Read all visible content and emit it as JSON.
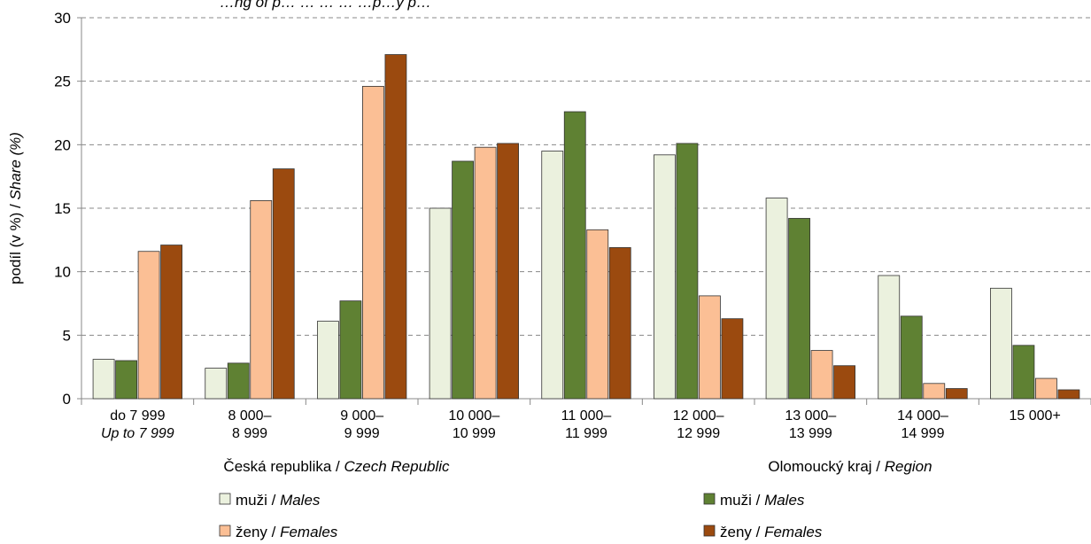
{
  "chart_data": {
    "type": "bar",
    "title": "…ng of p… … … … …p…y p…",
    "ylabel_main": "podíl (v %) / ",
    "ylabel_italic": "Share (%)",
    "ylim": [
      0,
      30
    ],
    "yticks": [
      0,
      5,
      10,
      15,
      20,
      25,
      30
    ],
    "grid": true,
    "categories": [
      {
        "line1": "do 7 999",
        "line2": "Up to 7 999",
        "line2_italic": true
      },
      {
        "line1": "8 000–",
        "line2": "8 999",
        "line2_italic": false
      },
      {
        "line1": "9 000–",
        "line2": "9 999",
        "line2_italic": false
      },
      {
        "line1": "10 000–",
        "line2": "10 999",
        "line2_italic": false
      },
      {
        "line1": "11 000–",
        "line2": "11 999",
        "line2_italic": false
      },
      {
        "line1": "12 000–",
        "line2": "12 999",
        "line2_italic": false
      },
      {
        "line1": "13 000–",
        "line2": "13 999",
        "line2_italic": false
      },
      {
        "line1": "14 000–",
        "line2": "14 999",
        "line2_italic": false
      },
      {
        "line1": "15 000+",
        "line2": "",
        "line2_italic": false
      }
    ],
    "group_labels": [
      {
        "main": "Česká republika  /  ",
        "italic": "Czech Republic"
      },
      {
        "main": "Olomoucký kraj  /  ",
        "italic": "Region"
      }
    ],
    "series": [
      {
        "key": "cz_males",
        "legend_main": "muži / ",
        "legend_italic": "Males",
        "color": "#EBF1DE",
        "values": [
          3.1,
          2.4,
          6.1,
          15.0,
          19.5,
          19.2,
          15.8,
          9.7,
          8.7
        ]
      },
      {
        "key": "region_males",
        "legend_main": "muži / ",
        "legend_italic": "Males",
        "color": "#5F8133",
        "values": [
          3.0,
          2.8,
          7.7,
          18.7,
          22.6,
          20.1,
          14.2,
          6.5,
          4.2
        ]
      },
      {
        "key": "cz_females",
        "legend_main": "ženy / ",
        "legend_italic": "Females",
        "color": "#FBBF95",
        "values": [
          11.6,
          15.6,
          24.6,
          19.8,
          13.3,
          8.1,
          3.8,
          1.2,
          1.6
        ]
      },
      {
        "key": "region_females",
        "legend_main": "ženy / ",
        "legend_italic": "Females",
        "color": "#9B4A0F",
        "values": [
          12.1,
          18.1,
          27.1,
          20.1,
          11.9,
          6.3,
          2.6,
          0.8,
          0.7
        ]
      }
    ]
  }
}
